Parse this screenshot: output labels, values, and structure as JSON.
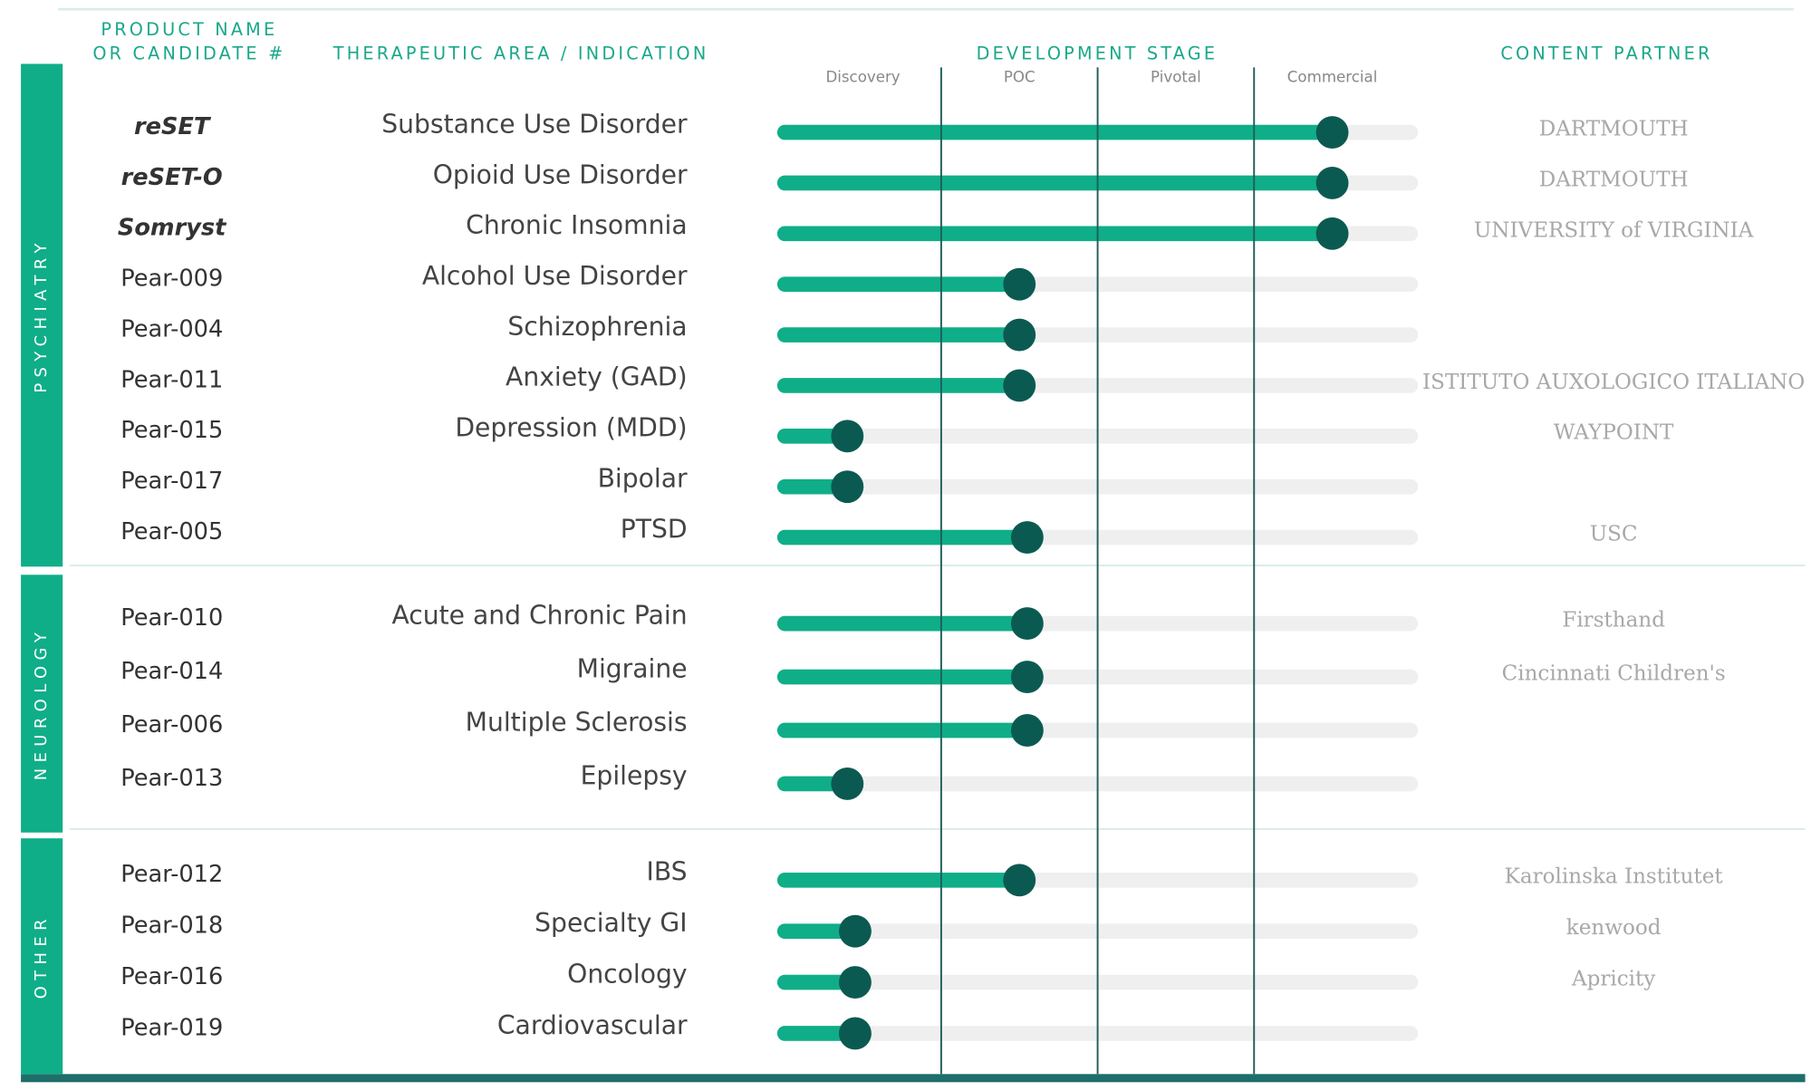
{
  "chart_data": {
    "type": "pipeline",
    "headers": {
      "product": [
        "PRODUCT NAME",
        "OR CANDIDATE #"
      ],
      "indication": "THERAPEUTIC AREA / INDICATION",
      "stage": "DEVELOPMENT STAGE",
      "partner": "CONTENT PARTNER"
    },
    "stages": [
      "Discovery",
      "POC",
      "Pivotal",
      "Commercial"
    ],
    "xlim": [
      0,
      4
    ],
    "xticks": [
      1,
      2,
      3
    ],
    "color": "#0fae88",
    "dot_color": "#0b5a52",
    "track_color": "#efefef",
    "groups": [
      {
        "name": "PSYCHIATRY",
        "rows": [
          {
            "product": "reSET",
            "product_color": "#0fae88",
            "indication": "Substance Use Disorder",
            "value": 3.5,
            "partner": "DARTMOUTH"
          },
          {
            "product": "reSET-O",
            "product_color": "#0fae88",
            "indication": "Opioid Use Disorder",
            "value": 3.5,
            "partner": "DARTMOUTH"
          },
          {
            "product": "Somryst",
            "product_color": "#6b3fa0",
            "indication": "Chronic Insomnia",
            "value": 3.5,
            "partner": "UNIVERSITY of VIRGINIA"
          },
          {
            "product": "Pear-009",
            "indication": "Alcohol Use Disorder",
            "value": 1.5
          },
          {
            "product": "Pear-004",
            "indication": "Schizophrenia",
            "value": 1.5
          },
          {
            "product": "Pear-011",
            "indication": "Anxiety (GAD)",
            "value": 1.5,
            "partner": "ISTITUTO AUXOLOGICO ITALIANO"
          },
          {
            "product": "Pear-015",
            "indication": "Depression (MDD)",
            "value": 0.4,
            "partner": "WAYPOINT"
          },
          {
            "product": "Pear-017",
            "indication": "Bipolar",
            "value": 0.4
          },
          {
            "product": "Pear-005",
            "indication": "PTSD",
            "value": 1.55,
            "partner": "USC"
          }
        ]
      },
      {
        "name": "NEUROLOGY",
        "rows": [
          {
            "product": "Pear-010",
            "indication": "Acute and Chronic Pain",
            "value": 1.55,
            "partner": "Firsthand"
          },
          {
            "product": "Pear-014",
            "indication": "Migraine",
            "value": 1.55,
            "partner": "Cincinnati Children's"
          },
          {
            "product": "Pear-006",
            "indication": "Multiple Sclerosis",
            "value": 1.55
          },
          {
            "product": "Pear-013",
            "indication": "Epilepsy",
            "value": 0.4
          }
        ]
      },
      {
        "name": "OTHER",
        "rows": [
          {
            "product": "Pear-012",
            "indication": "IBS",
            "value": 1.5,
            "partner": "Karolinska Institutet"
          },
          {
            "product": "Pear-018",
            "indication": "Specialty GI",
            "value": 0.45,
            "partner": "kenwood"
          },
          {
            "product": "Pear-016",
            "indication": "Oncology",
            "value": 0.45,
            "partner": "Apricity"
          },
          {
            "product": "Pear-019",
            "indication": "Cardiovascular",
            "value": 0.45
          }
        ]
      }
    ]
  }
}
